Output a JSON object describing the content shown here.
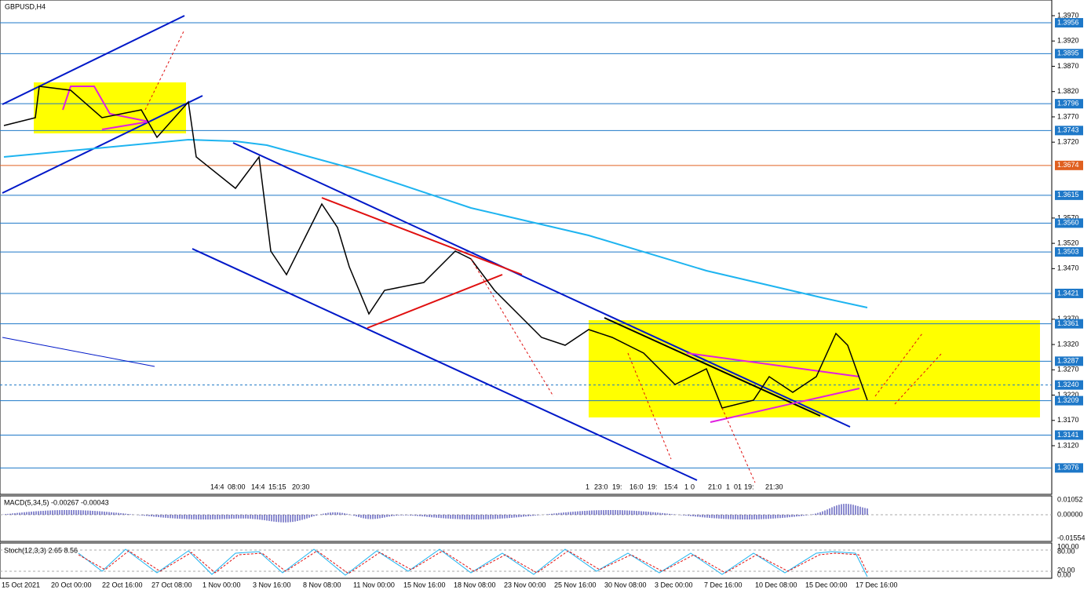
{
  "window": {
    "title": "GBPUSD,H4"
  },
  "price_axis": {
    "ticks": [
      "1.3970",
      "1.3920",
      "1.3870",
      "1.3820",
      "1.3770",
      "1.3720",
      "1.3570",
      "1.3520",
      "1.3470",
      "1.3370",
      "1.3320",
      "1.3270",
      "1.3220",
      "1.3170",
      "1.3120"
    ],
    "levels": [
      "1.3956",
      "1.3895",
      "1.3796",
      "1.3743",
      "1.3674",
      "1.3615",
      "1.3560",
      "1.3503",
      "1.3421",
      "1.3361",
      "1.3287",
      "1.3240",
      "1.3209",
      "1.3141",
      "1.3076"
    ]
  },
  "time_marks": {
    "left": [
      "14:4",
      "08:00",
      "14:4",
      "15:15",
      "20:30"
    ],
    "right": [
      "1",
      "23:0",
      "19:",
      "16:0",
      "19:",
      "15:4",
      "1",
      "0",
      "21:0",
      "1",
      "01",
      "19:",
      "21:30"
    ]
  },
  "macd": {
    "label": "MACD(5,34,5) -0.00267 -0.00043",
    "ticks": [
      "0.01052",
      "0.00000",
      "-0.01554"
    ]
  },
  "stoch": {
    "label": "Stoch(12,3,3) 2.65 8.56",
    "ticks": [
      "100.00",
      "80.00",
      "20.00",
      "0.00"
    ]
  },
  "time_axis": [
    "15 Oct 2021",
    "20 Oct 00:00",
    "22 Oct 16:00",
    "27 Oct 08:00",
    "1 Nov 00:00",
    "3 Nov 16:00",
    "8 Nov 08:00",
    "11 Nov 00:00",
    "15 Nov 16:00",
    "18 Nov 08:00",
    "23 Nov 00:00",
    "25 Nov 16:00",
    "30 Nov 08:00",
    "3 Dec 00:00",
    "7 Dec 16:00",
    "10 Dec 08:00",
    "15 Dec 00:00",
    "17 Dec 16:00"
  ]
}
